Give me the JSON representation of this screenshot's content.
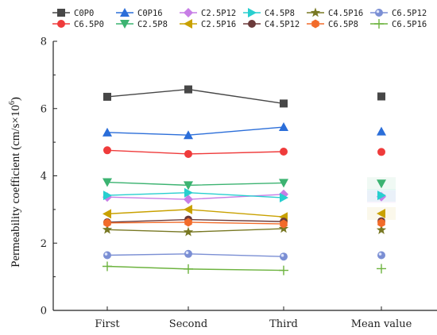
{
  "chart_data": {
    "type": "line",
    "xlabel": "",
    "ylabel": "Permeability coefficient",
    "ylabel_unit_prefix": "cm/s×10",
    "ylabel_unit_exp": "6",
    "ylim": [
      0,
      8
    ],
    "yticks": [
      "0",
      "2",
      "4",
      "6",
      "8"
    ],
    "categories": [
      "First",
      "Second",
      "Third",
      "Mean value"
    ],
    "grid": false,
    "legend_position": "top",
    "series": [
      {
        "name": "C0P0",
        "color": "#474747",
        "marker": "square",
        "values": [
          6.35,
          6.57,
          6.15,
          6.36
        ]
      },
      {
        "name": "C6.5P0",
        "color": "#ef3b3b",
        "marker": "circle",
        "values": [
          4.76,
          4.65,
          4.72,
          4.71
        ]
      },
      {
        "name": "C0P16",
        "color": "#2b6ed9",
        "marker": "triangle",
        "values": [
          5.29,
          5.21,
          5.45,
          5.32
        ]
      },
      {
        "name": "C2.5P8",
        "color": "#3cb371",
        "marker": "triangle-down",
        "values": [
          3.81,
          3.72,
          3.79,
          3.77
        ]
      },
      {
        "name": "C2.5P12",
        "color": "#c77ee6",
        "marker": "diamond",
        "values": [
          3.37,
          3.3,
          3.45,
          3.38
        ]
      },
      {
        "name": "C2.5P16",
        "color": "#c9a100",
        "marker": "triangle-left",
        "values": [
          2.87,
          3.0,
          2.78,
          2.88
        ]
      },
      {
        "name": "C4.5P8",
        "color": "#28cfcf",
        "marker": "triangle-right",
        "values": [
          3.42,
          3.5,
          3.35,
          3.42
        ]
      },
      {
        "name": "C4.5P12",
        "color": "#6b3a3a",
        "marker": "circle",
        "values": [
          2.62,
          2.7,
          2.64,
          2.65
        ]
      },
      {
        "name": "C4.5P16",
        "color": "#787823",
        "marker": "star",
        "values": [
          2.4,
          2.33,
          2.43,
          2.39
        ]
      },
      {
        "name": "C6.5P8",
        "color": "#f26b2a",
        "marker": "hexagon",
        "values": [
          2.6,
          2.62,
          2.57,
          2.6
        ]
      },
      {
        "name": "C6.5P12",
        "color": "#7b8fd4",
        "marker": "ball",
        "values": [
          1.64,
          1.68,
          1.6,
          1.64
        ]
      },
      {
        "name": "C6.5P16",
        "color": "#6db33f",
        "marker": "plus",
        "values": [
          1.31,
          1.23,
          1.19,
          1.24
        ]
      }
    ]
  }
}
